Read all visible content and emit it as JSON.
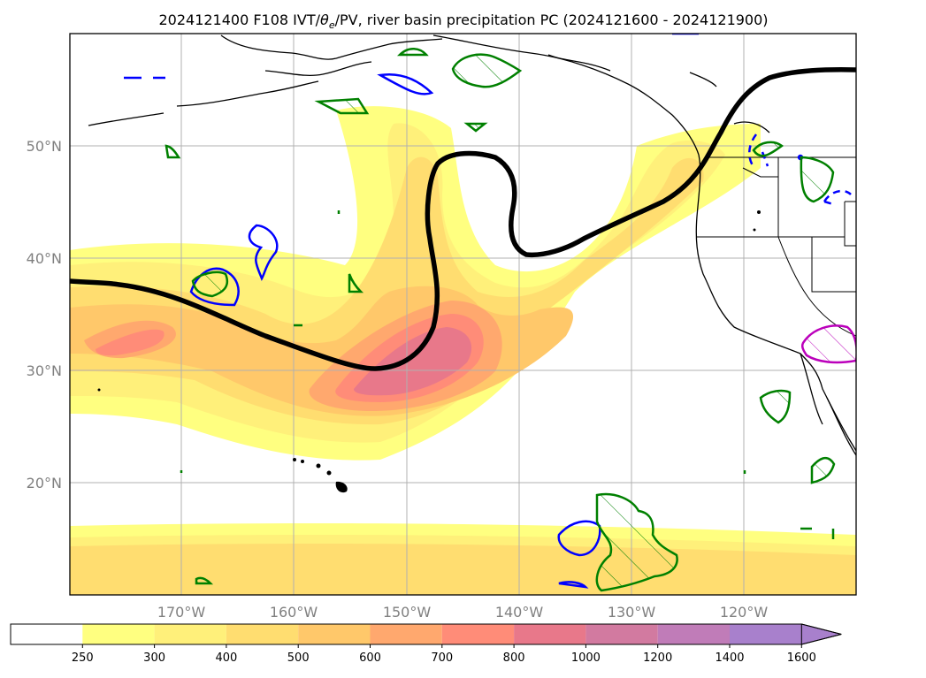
{
  "title": "2024121400 F108 IVT/θe/PV, river basin precipitation PC (2024121600 - 2024121900)",
  "title_parts": {
    "prefix": "2024121400 F108 IVT/",
    "theta": "θ",
    "theta_sub": "e",
    "suffix": "/PV, river basin precipitation PC (2024121600 - 2024121900)"
  },
  "map": {
    "projection": "PlateCarree",
    "lon_range": [
      -180,
      -110
    ],
    "lat_range": [
      10,
      60
    ],
    "lon_ticks": [
      {
        "lon": -170,
        "label": "170°W"
      },
      {
        "lon": -160,
        "label": "160°W"
      },
      {
        "lon": -150,
        "label": "150°W"
      },
      {
        "lon": -140,
        "label": "140°W"
      },
      {
        "lon": -130,
        "label": "130°W"
      },
      {
        "lon": -120,
        "label": "120°W"
      }
    ],
    "lat_ticks": [
      {
        "lat": 50,
        "label": "50°N"
      },
      {
        "lat": 40,
        "label": "40°N"
      },
      {
        "lat": 30,
        "label": "30°N"
      },
      {
        "lat": 20,
        "label": "20°N"
      }
    ],
    "grid": true
  },
  "colorbar": {
    "levels": [
      250,
      300,
      400,
      500,
      600,
      700,
      800,
      1000,
      1200,
      1400,
      1600
    ],
    "labels": [
      "250",
      "300",
      "400",
      "500",
      "600",
      "700",
      "800",
      "1000",
      "1200",
      "1400",
      "1600"
    ],
    "colors": [
      "#ffff80",
      "#fff07a",
      "#ffdd70",
      "#ffc86a",
      "#ffa86e",
      "#ff8c78",
      "#e8788a",
      "#d27aa0",
      "#c07cb8",
      "#a880cc",
      "#a880cc"
    ],
    "extend": "max"
  },
  "colors": {
    "jet_stream": "#000000",
    "pv_positive": "#008000",
    "pv_negative": "#0000ff",
    "precip_pc": "#bb00bb",
    "coastline": "#000000",
    "grid": "#b0b0b0"
  }
}
